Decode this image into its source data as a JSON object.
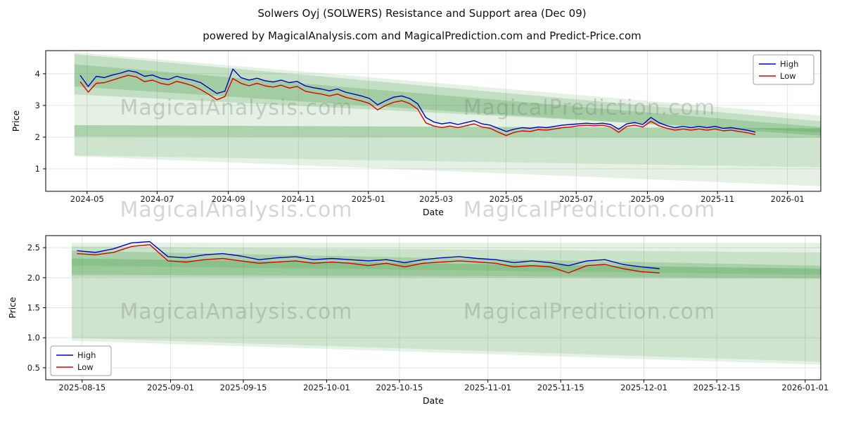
{
  "title": "Solwers Oyj (SOLWERS) Resistance and Support area (Dec 09)",
  "subtitle": "powered by MagicalAnalysis.com and MagicalPrediction.com and Predict-Price.com",
  "watermarks": {
    "row1": [
      "MagicalAnalysis.com",
      "MagicalPrediction.com"
    ],
    "row2": [
      "MagicalAnalysis.com",
      "MagicalPrediction.com"
    ],
    "row3": [
      "MagicalAnalysis.com",
      "MagicalPrediction.com"
    ]
  },
  "colors": {
    "high": "#0000cc",
    "low": "#e00000",
    "band": "#2f8f2f"
  },
  "chart_data": [
    {
      "type": "line",
      "xlabel": "Date",
      "ylabel": "Price",
      "x_domain": [
        "2024-03-26",
        "2026-01-30"
      ],
      "y_domain": [
        0.29,
        4.73
      ],
      "x_ticks": [
        {
          "date": "2024-05-01",
          "label": "2024-05"
        },
        {
          "date": "2024-07-01",
          "label": "2024-07"
        },
        {
          "date": "2024-09-01",
          "label": "2024-09"
        },
        {
          "date": "2024-11-01",
          "label": "2024-11"
        },
        {
          "date": "2025-01-01",
          "label": "2025-01"
        },
        {
          "date": "2025-03-01",
          "label": "2025-03"
        },
        {
          "date": "2025-05-01",
          "label": "2025-05"
        },
        {
          "date": "2025-07-01",
          "label": "2025-07"
        },
        {
          "date": "2025-09-01",
          "label": "2025-09"
        },
        {
          "date": "2025-11-01",
          "label": "2025-11"
        },
        {
          "date": "2026-01-01",
          "label": "2026-01"
        }
      ],
      "y_ticks": [
        {
          "value": 1,
          "label": "1"
        },
        {
          "value": 2,
          "label": "2"
        },
        {
          "value": 3,
          "label": "3"
        },
        {
          "value": 4,
          "label": "4"
        }
      ],
      "legend": {
        "position": "top-right",
        "items": [
          {
            "label": "High",
            "color_key": "high"
          },
          {
            "label": "Low",
            "color_key": "low"
          }
        ]
      },
      "bands": [
        {
          "alpha": 0.13,
          "points": [
            [
              "2024-04-20",
              4.68
            ],
            [
              "2026-01-30",
              2.68
            ],
            [
              "2026-01-30",
              0.45
            ],
            [
              "2024-04-20",
              1.4
            ]
          ]
        },
        {
          "alpha": 0.18,
          "points": [
            [
              "2024-04-20",
              4.62
            ],
            [
              "2026-01-30",
              2.5
            ],
            [
              "2026-01-30",
              2.15
            ],
            [
              "2024-04-20",
              3.35
            ]
          ]
        },
        {
          "alpha": 0.22,
          "points": [
            [
              "2024-04-20",
              4.3
            ],
            [
              "2026-01-30",
              2.32
            ],
            [
              "2026-01-30",
              2.05
            ],
            [
              "2024-04-20",
              3.6
            ]
          ]
        },
        {
          "alpha": 0.3,
          "points": [
            [
              "2024-04-20",
              2.38
            ],
            [
              "2026-01-30",
              2.28
            ],
            [
              "2026-01-30",
              1.98
            ],
            [
              "2024-04-20",
              2.02
            ]
          ]
        },
        {
          "alpha": 0.12,
          "points": [
            [
              "2024-04-20",
              2.02
            ],
            [
              "2026-01-30",
              1.98
            ],
            [
              "2026-01-30",
              1.05
            ],
            [
              "2024-04-20",
              1.42
            ]
          ]
        }
      ],
      "series": [
        {
          "name": "High",
          "color": "#0000cc",
          "x_start": "2024-04-25",
          "step_days": 7,
          "values": [
            3.95,
            3.6,
            3.92,
            3.88,
            3.96,
            4.02,
            4.1,
            4.05,
            3.92,
            3.96,
            3.86,
            3.82,
            3.92,
            3.85,
            3.8,
            3.72,
            3.55,
            3.38,
            3.45,
            4.15,
            3.88,
            3.8,
            3.86,
            3.78,
            3.74,
            3.8,
            3.72,
            3.76,
            3.62,
            3.56,
            3.52,
            3.46,
            3.52,
            3.42,
            3.36,
            3.3,
            3.22,
            3.02,
            3.15,
            3.26,
            3.3,
            3.22,
            3.05,
            2.62,
            2.48,
            2.42,
            2.46,
            2.4,
            2.46,
            2.52,
            2.42,
            2.38,
            2.28,
            2.18,
            2.25,
            2.3,
            2.28,
            2.32,
            2.3,
            2.34,
            2.38,
            2.4,
            2.42,
            2.44,
            2.42,
            2.44,
            2.4,
            2.25,
            2.42,
            2.46,
            2.4,
            2.62,
            2.46,
            2.36,
            2.3,
            2.34,
            2.3,
            2.34,
            2.3,
            2.34,
            2.28,
            2.3,
            2.26,
            2.22,
            2.16
          ]
        },
        {
          "name": "Low",
          "color": "#e00000",
          "x_start": "2024-04-25",
          "step_days": 7,
          "values": [
            3.75,
            3.42,
            3.7,
            3.72,
            3.8,
            3.88,
            3.95,
            3.9,
            3.75,
            3.8,
            3.7,
            3.65,
            3.76,
            3.7,
            3.62,
            3.5,
            3.35,
            3.18,
            3.28,
            3.85,
            3.7,
            3.62,
            3.7,
            3.62,
            3.58,
            3.64,
            3.55,
            3.6,
            3.45,
            3.4,
            3.36,
            3.3,
            3.36,
            3.26,
            3.2,
            3.14,
            3.06,
            2.86,
            3.0,
            3.1,
            3.15,
            3.06,
            2.88,
            2.45,
            2.35,
            2.3,
            2.35,
            2.3,
            2.36,
            2.42,
            2.32,
            2.28,
            2.16,
            2.05,
            2.15,
            2.2,
            2.18,
            2.24,
            2.22,
            2.26,
            2.3,
            2.32,
            2.36,
            2.38,
            2.36,
            2.38,
            2.32,
            2.15,
            2.34,
            2.38,
            2.32,
            2.5,
            2.36,
            2.28,
            2.22,
            2.26,
            2.22,
            2.26,
            2.22,
            2.26,
            2.2,
            2.22,
            2.18,
            2.14,
            2.08
          ]
        }
      ]
    },
    {
      "type": "line",
      "xlabel": "Date",
      "ylabel": "Price",
      "x_domain": [
        "2025-08-08",
        "2026-01-04"
      ],
      "y_domain": [
        0.3,
        2.7
      ],
      "x_ticks": [
        {
          "date": "2025-08-15",
          "label": "2025-08-15"
        },
        {
          "date": "2025-09-01",
          "label": "2025-09-01"
        },
        {
          "date": "2025-09-15",
          "label": "2025-09-15"
        },
        {
          "date": "2025-10-01",
          "label": "2025-10-01"
        },
        {
          "date": "2025-10-15",
          "label": "2025-10-15"
        },
        {
          "date": "2025-11-01",
          "label": "2025-11-01"
        },
        {
          "date": "2025-11-15",
          "label": "2025-11-15"
        },
        {
          "date": "2025-12-01",
          "label": "2025-12-01"
        },
        {
          "date": "2025-12-15",
          "label": "2025-12-15"
        },
        {
          "date": "2026-01-01",
          "label": "2026-01-01"
        }
      ],
      "y_ticks": [
        {
          "value": 0.5,
          "label": "0.5"
        },
        {
          "value": 1.0,
          "label": "1.0"
        },
        {
          "value": 1.5,
          "label": "1.5"
        },
        {
          "value": 2.0,
          "label": "2.0"
        },
        {
          "value": 2.5,
          "label": "2.5"
        }
      ],
      "legend": {
        "position": "bottom-left",
        "items": [
          {
            "label": "High",
            "color_key": "high"
          },
          {
            "label": "Low",
            "color_key": "low"
          }
        ]
      },
      "bands": [
        {
          "alpha": 0.13,
          "points": [
            [
              "2025-08-13",
              2.58
            ],
            [
              "2026-01-04",
              2.58
            ],
            [
              "2026-01-04",
              0.55
            ],
            [
              "2025-08-13",
              0.95
            ]
          ]
        },
        {
          "alpha": 0.15,
          "points": [
            [
              "2025-08-13",
              2.52
            ],
            [
              "2026-01-04",
              2.42
            ],
            [
              "2026-01-04",
              2.05
            ],
            [
              "2025-08-13",
              2.2
            ]
          ]
        },
        {
          "alpha": 0.2,
          "points": [
            [
              "2025-08-13",
              2.45
            ],
            [
              "2026-01-04",
              2.2
            ],
            [
              "2026-01-04",
              2.0
            ],
            [
              "2025-08-13",
              2.05
            ]
          ]
        },
        {
          "alpha": 0.25,
          "points": [
            [
              "2025-08-13",
              2.32
            ],
            [
              "2026-01-04",
              2.15
            ],
            [
              "2026-01-04",
              1.98
            ],
            [
              "2025-08-13",
              2.02
            ]
          ]
        },
        {
          "alpha": 0.12,
          "points": [
            [
              "2025-08-13",
              2.02
            ],
            [
              "2026-01-04",
              1.98
            ],
            [
              "2026-01-04",
              0.6
            ],
            [
              "2025-08-13",
              1.0
            ]
          ]
        }
      ],
      "series": [
        {
          "name": "High",
          "color": "#0000cc",
          "x_start": "2025-08-14",
          "step_days": 3.5,
          "values": [
            2.45,
            2.42,
            2.48,
            2.58,
            2.6,
            2.35,
            2.33,
            2.38,
            2.4,
            2.36,
            2.3,
            2.33,
            2.35,
            2.3,
            2.32,
            2.3,
            2.28,
            2.3,
            2.25,
            2.3,
            2.33,
            2.35,
            2.32,
            2.3,
            2.25,
            2.28,
            2.25,
            2.2,
            2.28,
            2.3,
            2.22,
            2.18,
            2.15
          ]
        },
        {
          "name": "Low",
          "color": "#e00000",
          "x_start": "2025-08-14",
          "step_days": 3.5,
          "values": [
            2.4,
            2.38,
            2.42,
            2.52,
            2.55,
            2.28,
            2.26,
            2.3,
            2.32,
            2.28,
            2.24,
            2.26,
            2.28,
            2.24,
            2.26,
            2.24,
            2.2,
            2.24,
            2.18,
            2.24,
            2.26,
            2.28,
            2.26,
            2.24,
            2.18,
            2.2,
            2.18,
            2.08,
            2.2,
            2.22,
            2.15,
            2.1,
            2.08
          ]
        }
      ]
    }
  ]
}
